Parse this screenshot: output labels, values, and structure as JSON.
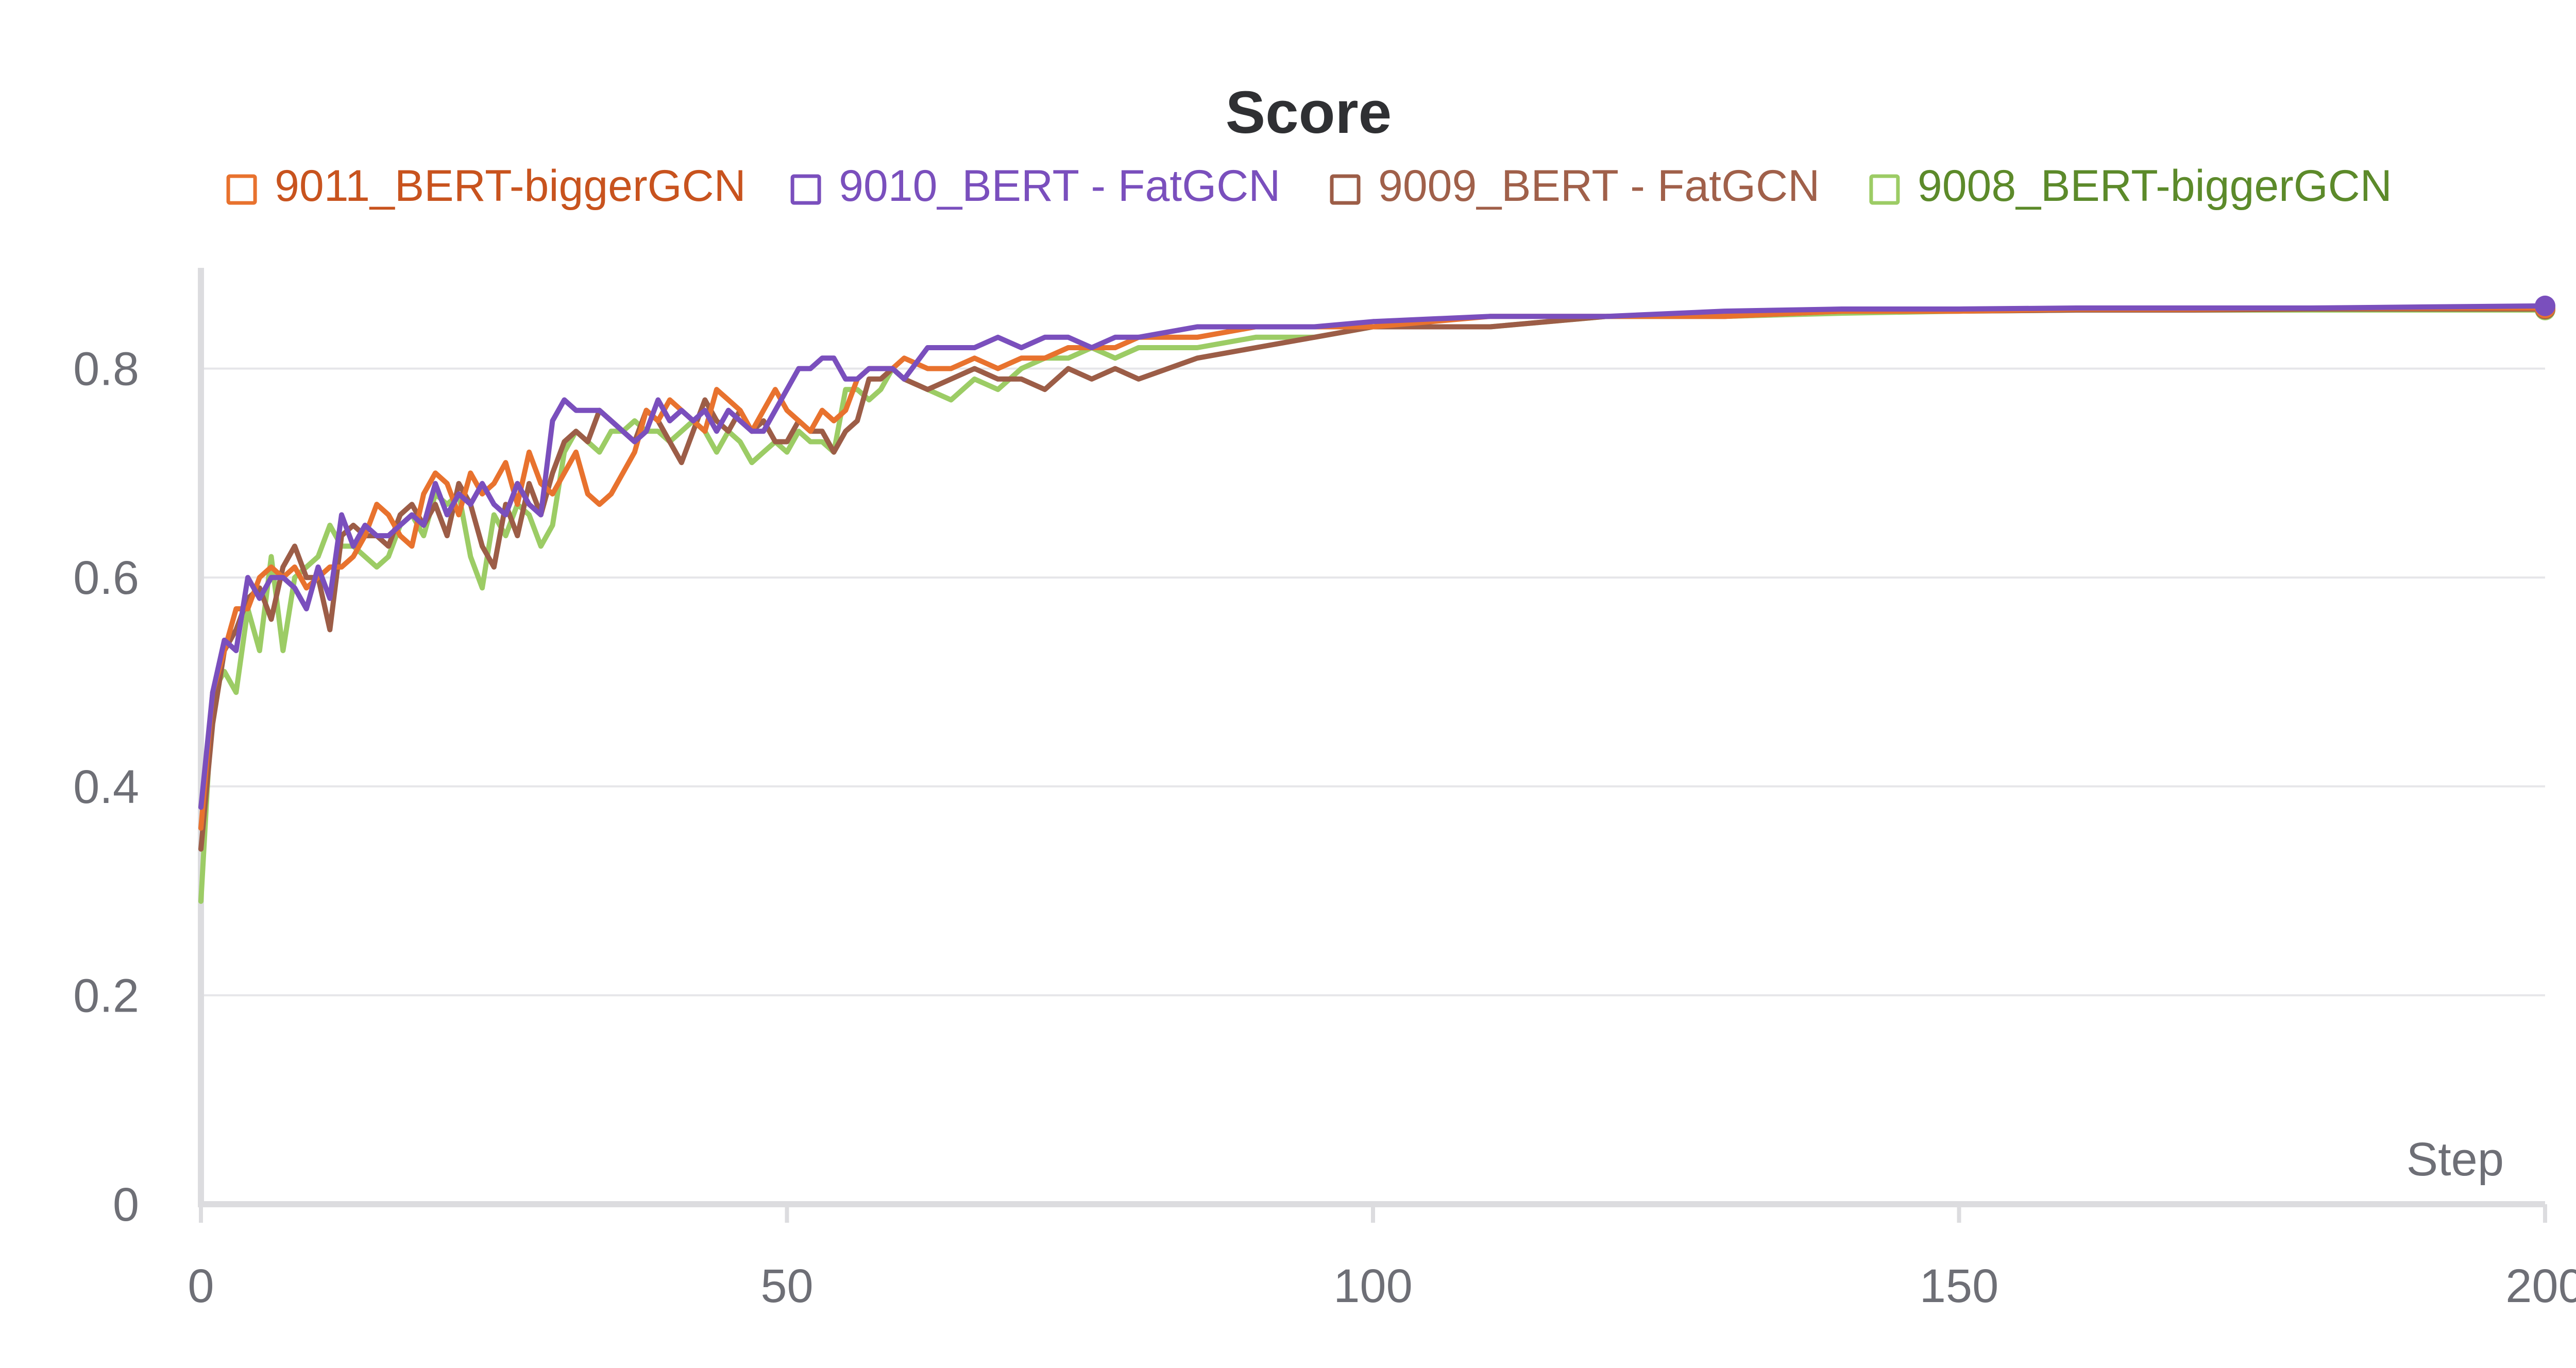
{
  "chart_data": {
    "type": "line",
    "title": "Score",
    "xlabel": "Step",
    "ylabel": "",
    "xlim": [
      0,
      200
    ],
    "ylim": [
      0,
      0.9
    ],
    "xticks": [
      "0",
      "50",
      "100",
      "150",
      "200"
    ],
    "yticks": [
      "0",
      "0.2",
      "0.4",
      "0.6",
      "0.8"
    ],
    "grid": "horizontal",
    "legend_position": "top",
    "series": [
      {
        "name": "9011_BERT-biggerGCN",
        "color": "#e8722e",
        "label_color": "#c8531e",
        "x": [
          0,
          1,
          2,
          3,
          4,
          5,
          6,
          7,
          8,
          9,
          10,
          11,
          12,
          13,
          14,
          15,
          16,
          17,
          18,
          19,
          20,
          21,
          22,
          23,
          24,
          25,
          26,
          27,
          28,
          29,
          30,
          31,
          32,
          33,
          34,
          35,
          36,
          37,
          38,
          39,
          40,
          41,
          42,
          43,
          44,
          45,
          46,
          47,
          48,
          49,
          50,
          51,
          52,
          53,
          54,
          55,
          56,
          57,
          58,
          59,
          60,
          62,
          64,
          66,
          68,
          70,
          72,
          74,
          76,
          78,
          80,
          85,
          90,
          95,
          100,
          110,
          120,
          130,
          140,
          150,
          160,
          170,
          180,
          190,
          200
        ],
        "y": [
          0.36,
          0.49,
          0.53,
          0.57,
          0.57,
          0.6,
          0.61,
          0.6,
          0.61,
          0.59,
          0.6,
          0.61,
          0.61,
          0.62,
          0.64,
          0.67,
          0.66,
          0.64,
          0.63,
          0.68,
          0.7,
          0.69,
          0.66,
          0.7,
          0.68,
          0.69,
          0.71,
          0.67,
          0.72,
          0.69,
          0.68,
          0.7,
          0.72,
          0.68,
          0.67,
          0.68,
          0.7,
          0.72,
          0.76,
          0.75,
          0.77,
          0.76,
          0.75,
          0.74,
          0.78,
          0.77,
          0.76,
          0.74,
          0.76,
          0.78,
          0.76,
          0.75,
          0.74,
          0.76,
          0.75,
          0.76,
          0.79,
          0.8,
          0.8,
          0.8,
          0.81,
          0.8,
          0.8,
          0.81,
          0.8,
          0.81,
          0.81,
          0.82,
          0.82,
          0.82,
          0.83,
          0.83,
          0.84,
          0.84,
          0.84,
          0.85,
          0.85,
          0.85,
          0.855,
          0.855,
          0.857,
          0.857,
          0.858,
          0.858,
          0.858
        ]
      },
      {
        "name": "9010_BERT - FatGCN",
        "color": "#7a4fbd",
        "label_color": "#7a4fbd",
        "x": [
          0,
          1,
          2,
          3,
          4,
          5,
          6,
          7,
          8,
          9,
          10,
          11,
          12,
          13,
          14,
          15,
          16,
          17,
          18,
          19,
          20,
          21,
          22,
          23,
          24,
          25,
          26,
          27,
          28,
          29,
          30,
          31,
          32,
          33,
          34,
          35,
          36,
          37,
          38,
          39,
          40,
          41,
          42,
          43,
          44,
          45,
          46,
          47,
          48,
          49,
          50,
          51,
          52,
          53,
          54,
          55,
          56,
          57,
          58,
          59,
          60,
          62,
          64,
          66,
          68,
          70,
          72,
          74,
          76,
          78,
          80,
          85,
          90,
          95,
          100,
          110,
          120,
          130,
          140,
          150,
          160,
          170,
          180,
          190,
          200
        ],
        "y": [
          0.38,
          0.49,
          0.54,
          0.53,
          0.6,
          0.58,
          0.6,
          0.6,
          0.59,
          0.57,
          0.61,
          0.58,
          0.66,
          0.63,
          0.65,
          0.64,
          0.64,
          0.65,
          0.66,
          0.65,
          0.69,
          0.66,
          0.68,
          0.67,
          0.69,
          0.67,
          0.66,
          0.69,
          0.67,
          0.66,
          0.75,
          0.77,
          0.76,
          0.76,
          0.76,
          0.75,
          0.74,
          0.73,
          0.74,
          0.77,
          0.75,
          0.76,
          0.75,
          0.76,
          0.74,
          0.76,
          0.75,
          0.74,
          0.74,
          0.76,
          0.78,
          0.8,
          0.8,
          0.81,
          0.81,
          0.79,
          0.79,
          0.8,
          0.8,
          0.8,
          0.79,
          0.82,
          0.82,
          0.82,
          0.83,
          0.82,
          0.83,
          0.83,
          0.82,
          0.83,
          0.83,
          0.84,
          0.84,
          0.84,
          0.845,
          0.85,
          0.85,
          0.855,
          0.857,
          0.857,
          0.858,
          0.858,
          0.858,
          0.859,
          0.86
        ]
      },
      {
        "name": "9009_BERT - FatGCN",
        "color": "#9c5d47",
        "label_color": "#a0604a",
        "x": [
          0,
          1,
          2,
          3,
          4,
          5,
          6,
          7,
          8,
          9,
          10,
          11,
          12,
          13,
          14,
          15,
          16,
          17,
          18,
          19,
          20,
          21,
          22,
          23,
          24,
          25,
          26,
          27,
          28,
          29,
          30,
          31,
          32,
          33,
          34,
          35,
          36,
          37,
          38,
          39,
          40,
          41,
          42,
          43,
          44,
          45,
          46,
          47,
          48,
          49,
          50,
          51,
          52,
          53,
          54,
          55,
          56,
          57,
          58,
          59,
          60,
          62,
          64,
          66,
          68,
          70,
          72,
          74,
          76,
          78,
          80,
          85,
          90,
          95,
          100,
          110,
          120,
          130,
          140,
          150,
          160,
          170,
          180,
          190,
          200
        ],
        "y": [
          0.34,
          0.46,
          0.53,
          0.55,
          0.58,
          0.59,
          0.56,
          0.61,
          0.63,
          0.6,
          0.6,
          0.55,
          0.64,
          0.65,
          0.64,
          0.64,
          0.63,
          0.66,
          0.67,
          0.65,
          0.67,
          0.64,
          0.69,
          0.67,
          0.63,
          0.61,
          0.67,
          0.64,
          0.69,
          0.66,
          0.7,
          0.73,
          0.74,
          0.73,
          0.76,
          0.75,
          0.74,
          0.73,
          0.76,
          0.75,
          0.73,
          0.71,
          0.74,
          0.77,
          0.75,
          0.74,
          0.76,
          0.74,
          0.75,
          0.73,
          0.73,
          0.75,
          0.74,
          0.74,
          0.72,
          0.74,
          0.75,
          0.79,
          0.79,
          0.8,
          0.79,
          0.78,
          0.79,
          0.8,
          0.79,
          0.79,
          0.78,
          0.8,
          0.79,
          0.8,
          0.79,
          0.81,
          0.82,
          0.83,
          0.84,
          0.84,
          0.85,
          0.85,
          0.855,
          0.855,
          0.856,
          0.856,
          0.857,
          0.857,
          0.857
        ]
      },
      {
        "name": "9008_BERT-biggerGCN",
        "color": "#9ccc65",
        "label_color": "#5c8a2a",
        "x": [
          0,
          1,
          2,
          3,
          4,
          5,
          6,
          7,
          8,
          9,
          10,
          11,
          12,
          13,
          14,
          15,
          16,
          17,
          18,
          19,
          20,
          21,
          22,
          23,
          24,
          25,
          26,
          27,
          28,
          29,
          30,
          31,
          32,
          33,
          34,
          35,
          36,
          37,
          38,
          39,
          40,
          41,
          42,
          43,
          44,
          45,
          46,
          47,
          48,
          49,
          50,
          51,
          52,
          53,
          54,
          55,
          56,
          57,
          58,
          59,
          60,
          62,
          64,
          66,
          68,
          70,
          72,
          74,
          76,
          78,
          80,
          85,
          90,
          95,
          100,
          110,
          120,
          130,
          140,
          150,
          160,
          170,
          180,
          190,
          200
        ],
        "y": [
          0.29,
          0.49,
          0.51,
          0.49,
          0.57,
          0.53,
          0.62,
          0.53,
          0.6,
          0.61,
          0.62,
          0.65,
          0.63,
          0.63,
          0.62,
          0.61,
          0.62,
          0.65,
          0.66,
          0.64,
          0.68,
          0.67,
          0.68,
          0.62,
          0.59,
          0.66,
          0.64,
          0.67,
          0.66,
          0.63,
          0.65,
          0.72,
          0.74,
          0.73,
          0.72,
          0.74,
          0.74,
          0.75,
          0.74,
          0.74,
          0.73,
          0.74,
          0.75,
          0.74,
          0.72,
          0.74,
          0.73,
          0.71,
          0.72,
          0.73,
          0.72,
          0.74,
          0.73,
          0.73,
          0.72,
          0.78,
          0.78,
          0.77,
          0.78,
          0.8,
          0.79,
          0.78,
          0.77,
          0.79,
          0.78,
          0.8,
          0.81,
          0.81,
          0.82,
          0.81,
          0.82,
          0.82,
          0.83,
          0.83,
          0.84,
          0.84,
          0.85,
          0.85,
          0.853,
          0.855,
          0.856,
          0.856,
          0.856,
          0.856,
          0.856
        ]
      }
    ]
  }
}
